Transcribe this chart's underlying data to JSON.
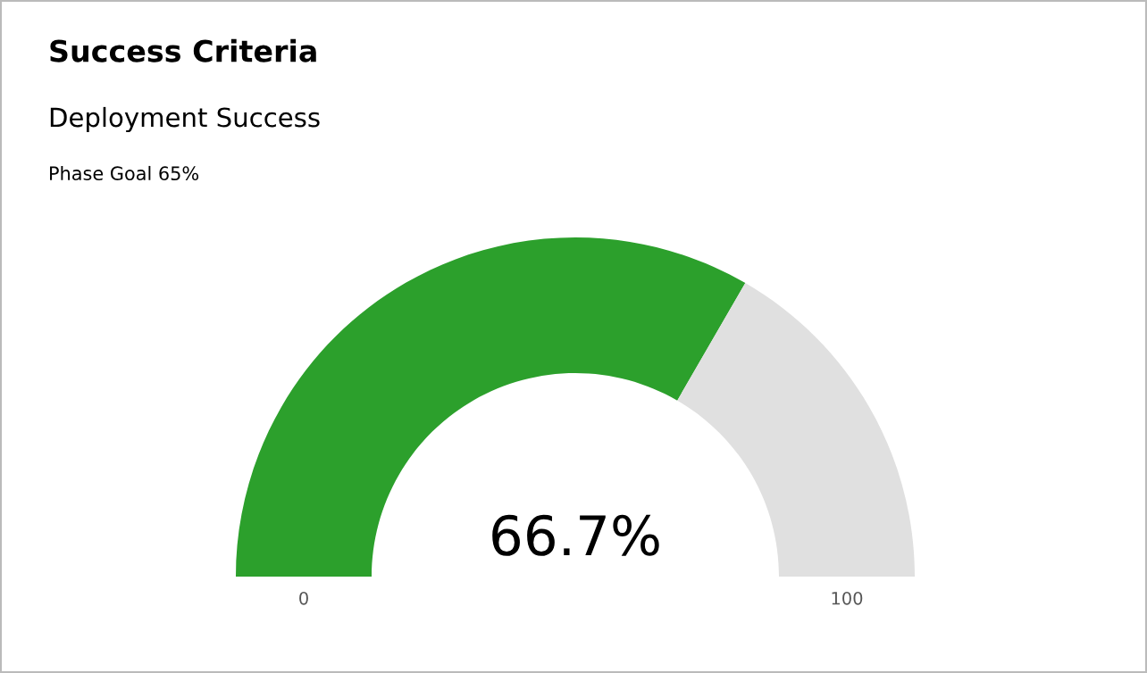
{
  "chart_data": {
    "type": "donut",
    "title": "Success Criteria",
    "subtitle": "Deployment Success",
    "annotations": [
      "Phase Goal 65%",
      "0",
      "100"
    ],
    "categories": [
      null,
      null
    ],
    "values": [
      66.7,
      33.3
    ],
    "colors": [
      "#2ca02c",
      "#e0e0e0"
    ],
    "value_labels": [
      "66.7%",
      null
    ]
  }
}
